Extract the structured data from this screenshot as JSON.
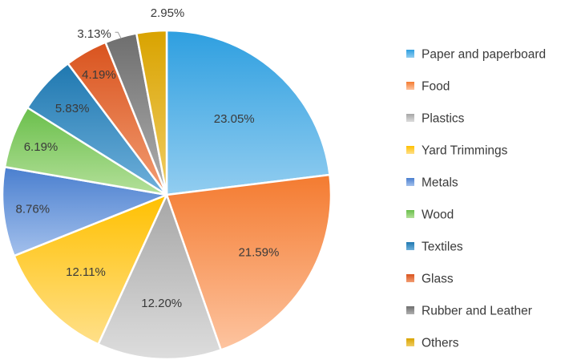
{
  "chart_data": {
    "type": "pie",
    "title": "",
    "legend_position": "right",
    "categories": [
      "Paper and paperboard",
      "Food",
      "Plastics",
      "Yard Trimmings",
      "Metals",
      "Wood",
      "Textiles",
      "Glass",
      "Rubber and Leather",
      "Others"
    ],
    "values": [
      23.05,
      21.59,
      12.2,
      12.11,
      8.76,
      6.19,
      5.83,
      4.19,
      3.13,
      2.95
    ],
    "labels": [
      "23.05%",
      "21.59%",
      "12.20%",
      "12.11%",
      "8.76%",
      "6.19%",
      "5.83%",
      "4.19%",
      "3.13%",
      "2.95%"
    ],
    "colors": [
      "#2e9fe0",
      "#f47b30",
      "#a6a6a6",
      "#ffc000",
      "#4a7fcf",
      "#6abf4b",
      "#1f78b0",
      "#d9531e",
      "#6e6e6e",
      "#d9a300"
    ],
    "colors_light": [
      "#92cdf0",
      "#fdc4a0",
      "#dddddd",
      "#ffe08a",
      "#a3c0ec",
      "#b4e09a",
      "#6fb0db",
      "#f29d72",
      "#b0b0b0",
      "#f0cd63"
    ]
  }
}
